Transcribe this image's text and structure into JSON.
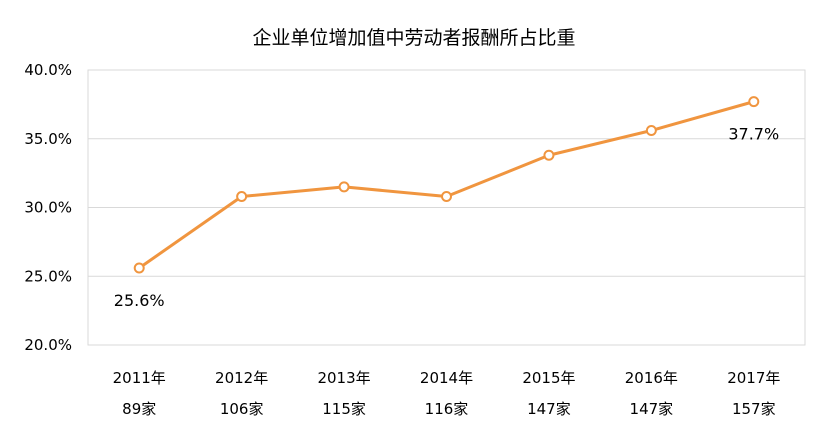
{
  "chart_data": {
    "type": "line",
    "title": "企业单位增加值中劳动者报酬所占比重",
    "xlabel": "",
    "ylabel": "",
    "categories": [
      {
        "year": "2011年",
        "count": "89家"
      },
      {
        "year": "2012年",
        "count": "106家"
      },
      {
        "year": "2013年",
        "count": "115家"
      },
      {
        "year": "2014年",
        "count": "116家"
      },
      {
        "year": "2015年",
        "count": "147家"
      },
      {
        "year": "2016年",
        "count": "147家"
      },
      {
        "year": "2017年",
        "count": "157家"
      }
    ],
    "series": [
      {
        "values": [
          25.6,
          30.8,
          31.5,
          30.8,
          33.8,
          35.6,
          37.7
        ],
        "color": "#F0953F",
        "marker": "hollow-circle"
      }
    ],
    "ylim": [
      20,
      40
    ],
    "yticks": [
      {
        "value": 40,
        "label": "40.0%"
      },
      {
        "value": 35,
        "label": "35.0%"
      },
      {
        "value": 30,
        "label": "30.0%"
      },
      {
        "value": 25,
        "label": "25.0%"
      },
      {
        "value": 20,
        "label": "20.0%"
      }
    ],
    "data_labels": [
      {
        "index": 0,
        "text": "25.6%",
        "position": "below"
      },
      {
        "index": 6,
        "text": "37.7%",
        "position": "below"
      }
    ],
    "grid": true,
    "legend": "none",
    "colors": {
      "line": "#F0953F",
      "grid": "#D9D9D9",
      "border": "#D9D9D9"
    }
  }
}
